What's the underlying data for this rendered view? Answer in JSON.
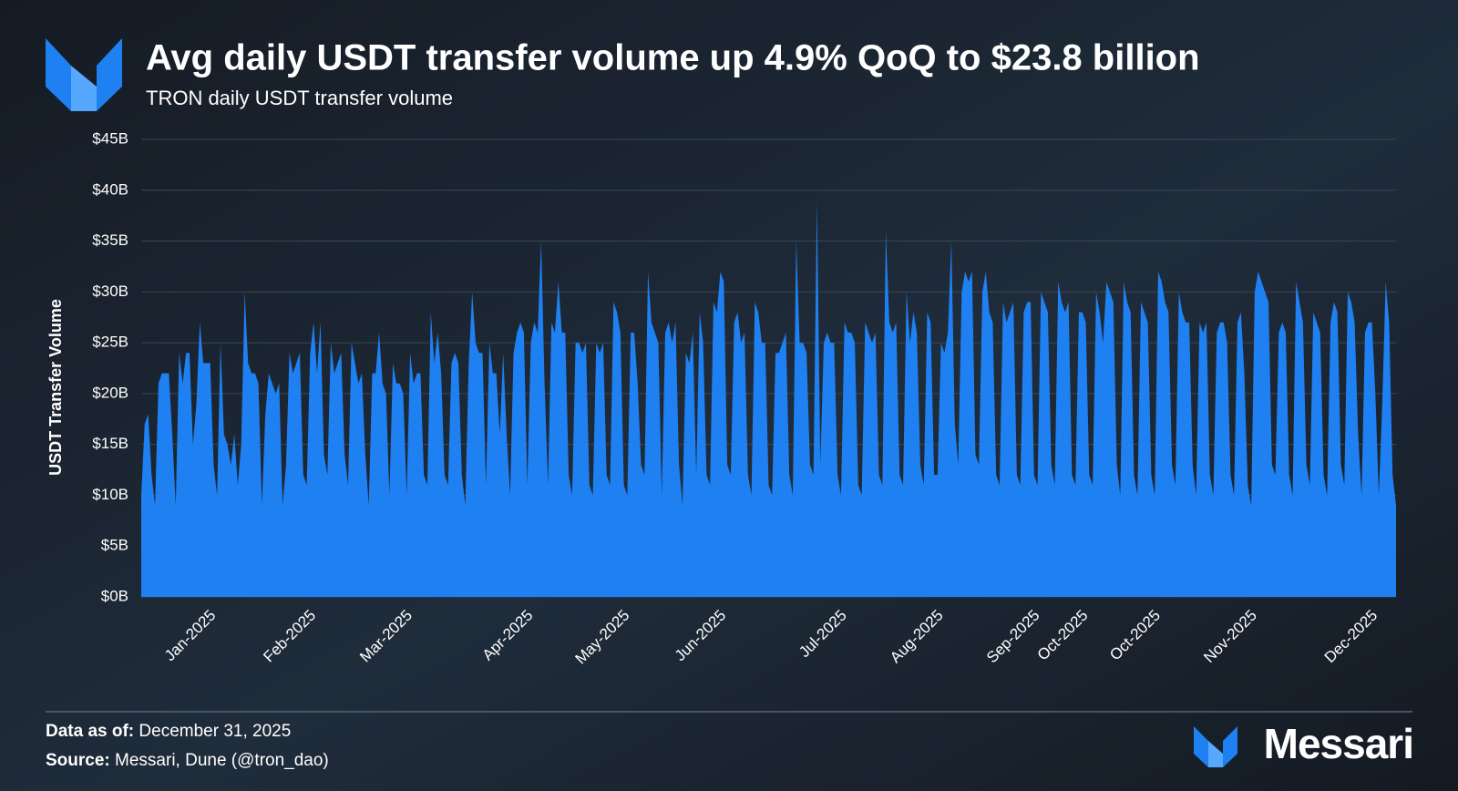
{
  "chart_data": {
    "type": "area",
    "title": "Avg daily USDT transfer volume up 4.9% QoQ to $23.8 billion",
    "subtitle": "TRON daily USDT transfer volume",
    "y_label": "USDT Transfer Volume",
    "color": "#1f80f2",
    "grid": true,
    "ylim": [
      0,
      45
    ],
    "yticks": [
      {
        "value": 0,
        "label": "$0B"
      },
      {
        "value": 5,
        "label": "$5B"
      },
      {
        "value": 10,
        "label": "$10B"
      },
      {
        "value": 15,
        "label": "$15B"
      },
      {
        "value": 20,
        "label": "$20B"
      },
      {
        "value": 25,
        "label": "$25B"
      },
      {
        "value": 30,
        "label": "$30B"
      },
      {
        "value": 35,
        "label": "$35B"
      },
      {
        "value": 40,
        "label": "$40B"
      },
      {
        "value": 45,
        "label": "$45B"
      }
    ],
    "categories": [
      null,
      null,
      null,
      null,
      null,
      null,
      null,
      null,
      null,
      null,
      null,
      null,
      null,
      null,
      null,
      null,
      null,
      null,
      null,
      null,
      null,
      "Jan-2025",
      null,
      null,
      null,
      null,
      null,
      null,
      null,
      null,
      null,
      null,
      null,
      null,
      null,
      null,
      null,
      null,
      null,
      null,
      null,
      null,
      null,
      null,
      null,
      null,
      null,
      null,
      null,
      null,
      "Feb-2025",
      null,
      null,
      null,
      null,
      null,
      null,
      null,
      null,
      null,
      null,
      null,
      null,
      null,
      null,
      null,
      null,
      null,
      null,
      null,
      null,
      null,
      null,
      null,
      null,
      null,
      null,
      null,
      "Mar-2025",
      null,
      null,
      null,
      null,
      null,
      null,
      null,
      null,
      null,
      null,
      null,
      null,
      null,
      null,
      null,
      null,
      null,
      null,
      null,
      null,
      null,
      null,
      null,
      null,
      null,
      null,
      null,
      null,
      null,
      null,
      null,
      null,
      null,
      null,
      "Apr-2025",
      null,
      null,
      null,
      null,
      null,
      null,
      null,
      null,
      null,
      null,
      null,
      null,
      null,
      null,
      null,
      null,
      null,
      null,
      null,
      null,
      null,
      null,
      null,
      null,
      null,
      null,
      null,
      "May-2025",
      null,
      null,
      null,
      null,
      null,
      null,
      null,
      null,
      null,
      null,
      null,
      null,
      null,
      null,
      null,
      null,
      null,
      null,
      null,
      null,
      null,
      null,
      null,
      null,
      null,
      null,
      null,
      "Jun-2025",
      null,
      null,
      null,
      null,
      null,
      null,
      null,
      null,
      null,
      null,
      null,
      null,
      null,
      null,
      null,
      null,
      null,
      null,
      null,
      null,
      null,
      null,
      null,
      null,
      null,
      null,
      null,
      null,
      null,
      null,
      null,
      null,
      null,
      null,
      "Jul-2025",
      null,
      null,
      null,
      null,
      null,
      null,
      null,
      null,
      null,
      null,
      null,
      null,
      null,
      null,
      null,
      null,
      null,
      null,
      null,
      null,
      null,
      null,
      null,
      null,
      null,
      null,
      null,
      "Aug-2025",
      null,
      null,
      null,
      null,
      null,
      null,
      null,
      null,
      null,
      null,
      null,
      null,
      null,
      null,
      null,
      null,
      null,
      null,
      null,
      null,
      null,
      null,
      null,
      null,
      null,
      null,
      null,
      "Sep-2025",
      null,
      null,
      null,
      null,
      null,
      null,
      null,
      null,
      null,
      null,
      null,
      null,
      null,
      "Oct-2025",
      null,
      null,
      null,
      null,
      null,
      null,
      null,
      null,
      null,
      null,
      null,
      null,
      null,
      null,
      null,
      null,
      null,
      null,
      null,
      null,
      "Oct-2025",
      null,
      null,
      null,
      null,
      null,
      null,
      null,
      null,
      null,
      null,
      null,
      null,
      null,
      null,
      null,
      null,
      null,
      null,
      null,
      null,
      null,
      null,
      null,
      null,
      null,
      null,
      null,
      "Nov-2025",
      null,
      null,
      null,
      null,
      null,
      null,
      null,
      null,
      null,
      null,
      null,
      null,
      null,
      null,
      null,
      null,
      null,
      null,
      null,
      null,
      null,
      null,
      null,
      null,
      null,
      null,
      null,
      null,
      null,
      null,
      null,
      null,
      null,
      null,
      "Dec-2025",
      null,
      null,
      null,
      null,
      null,
      null
    ],
    "values": [
      10,
      17,
      18,
      12,
      9,
      21,
      22,
      22,
      22,
      16,
      9,
      24,
      21,
      24,
      24,
      15,
      19,
      27,
      23,
      23,
      23,
      13,
      10,
      25,
      16,
      15,
      13,
      16,
      11,
      15,
      30,
      23,
      22,
      22,
      21,
      9,
      18,
      22,
      21,
      20,
      21,
      9,
      13,
      24,
      22,
      23,
      24,
      12,
      11,
      24,
      27,
      22,
      27,
      14,
      12,
      25,
      22,
      23,
      24,
      14,
      11,
      25,
      23,
      21,
      22,
      14,
      9,
      22,
      22,
      26,
      21,
      20,
      10,
      23,
      21,
      21,
      20,
      10,
      24,
      21,
      22,
      22,
      12,
      11,
      28,
      23,
      26,
      22,
      12,
      11,
      23,
      24,
      23,
      12,
      9,
      23,
      30,
      25,
      24,
      24,
      11,
      25,
      22,
      22,
      16,
      24,
      16,
      10,
      24,
      26,
      27,
      26,
      11,
      25,
      27,
      26,
      35,
      21,
      11,
      27,
      26,
      31,
      26,
      26,
      12,
      10,
      25,
      25,
      24,
      25,
      11,
      10,
      25,
      24,
      25,
      12,
      11,
      29,
      28,
      26,
      11,
      10,
      26,
      26,
      21,
      13,
      12,
      32,
      27,
      26,
      25,
      10,
      26,
      27,
      25,
      27,
      13,
      9,
      24,
      23,
      26,
      12,
      28,
      25,
      12,
      11,
      29,
      28,
      32,
      31,
      13,
      12,
      27,
      28,
      25,
      26,
      12,
      10,
      29,
      28,
      25,
      25,
      11,
      10,
      24,
      24,
      25,
      26,
      12,
      10,
      35,
      25,
      25,
      24,
      13,
      12,
      39,
      13,
      25,
      26,
      25,
      25,
      12,
      10,
      27,
      26,
      26,
      25,
      11,
      10,
      27,
      26,
      25,
      26,
      12,
      11,
      36,
      27,
      26,
      27,
      12,
      11,
      30,
      25,
      28,
      26,
      13,
      11,
      28,
      27,
      12,
      12,
      25,
      24,
      26,
      35,
      17,
      13,
      30,
      32,
      31,
      32,
      14,
      13,
      30,
      32,
      28,
      27,
      12,
      11,
      29,
      27,
      28,
      29,
      12,
      11,
      28,
      29,
      29,
      12,
      11,
      30,
      29,
      28,
      13,
      11,
      31,
      29,
      28,
      29,
      12,
      11,
      28,
      28,
      27,
      12,
      11,
      30,
      28,
      25,
      31,
      30,
      29,
      13,
      10,
      31,
      29,
      28,
      12,
      10,
      29,
      28,
      27,
      12,
      10,
      32,
      31,
      29,
      28,
      13,
      11,
      30,
      28,
      27,
      27,
      13,
      10,
      27,
      26,
      27,
      12,
      10,
      26,
      27,
      27,
      25,
      12,
      10,
      27,
      28,
      22,
      11,
      9,
      30,
      32,
      31,
      30,
      29,
      13,
      12,
      26,
      27,
      26,
      12,
      10,
      31,
      29,
      27,
      13,
      11,
      28,
      27,
      26,
      12,
      10,
      27,
      29,
      28,
      13,
      11,
      30,
      29,
      27,
      16,
      10,
      26,
      27,
      27,
      20,
      10,
      19,
      31,
      27,
      12,
      9
    ]
  },
  "footer": {
    "data_label": "Data as of:",
    "data_value": "December 31, 2025",
    "source_label": "Source:",
    "source_value": "Messari, Dune (@tron_dao)",
    "brand": "Messari"
  }
}
